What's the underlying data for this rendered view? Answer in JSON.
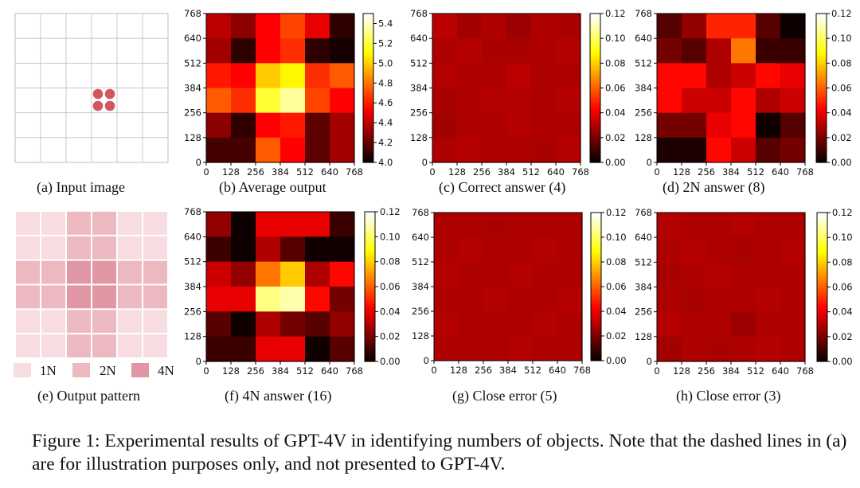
{
  "axis_ticks": [
    "0",
    "128",
    "256",
    "384",
    "512",
    "640",
    "768"
  ],
  "colorbar_ticks_b": [
    "4.0",
    "4.2",
    "4.4",
    "4.6",
    "4.8",
    "5.0",
    "5.2",
    "5.4"
  ],
  "colorbar_ticks_std": [
    "0.00",
    "0.02",
    "0.04",
    "0.06",
    "0.08",
    "0.10",
    "0.12"
  ],
  "legend": {
    "n1": "1N",
    "n2": "2N",
    "n4": "4N"
  },
  "pattern_colors": {
    "n1": "#f7dde1",
    "n2": "#edb9c1",
    "n4": "#e097a3"
  },
  "captions": {
    "a": "(a) Input image",
    "b": "(b) Average output",
    "c": "(c) Correct answer (4)",
    "d": "(d) 2N answer (8)",
    "e": "(e) Output pattern",
    "f": "(f) 4N answer (16)",
    "g": "(g) Close error (5)",
    "h": "(h) Close error (3)"
  },
  "figure_caption": "Figure 1: Experimental results of GPT-4V in identifying numbers of objects. Note that the dashed lines in (a) are for illustration purposes only, and not presented to GPT-4V.",
  "chart_data": [
    {
      "panel": "b",
      "type": "heatmap",
      "title": "Average output",
      "vmin": 4.0,
      "vmax": 5.5,
      "x_ticks": [
        0,
        128,
        256,
        384,
        512,
        640,
        768
      ],
      "y_ticks": [
        0,
        128,
        256,
        384,
        512,
        640,
        768
      ],
      "values": [
        [
          4.4,
          4.3,
          4.55,
          4.7,
          4.5,
          4.1
        ],
        [
          4.35,
          4.1,
          4.55,
          4.65,
          4.1,
          4.05
        ],
        [
          4.6,
          4.55,
          5.0,
          5.1,
          4.65,
          4.75
        ],
        [
          4.75,
          4.65,
          5.2,
          5.35,
          4.7,
          4.55
        ],
        [
          4.3,
          4.1,
          4.55,
          4.6,
          4.2,
          4.35
        ],
        [
          4.15,
          4.15,
          4.75,
          4.55,
          4.2,
          4.35
        ]
      ]
    },
    {
      "panel": "c",
      "type": "heatmap",
      "title": "Correct answer (4)",
      "vmin": 0,
      "vmax": 0.12,
      "x_ticks": [
        0,
        128,
        256,
        384,
        512,
        640,
        768
      ],
      "y_ticks": [
        0,
        128,
        256,
        384,
        512,
        640,
        768
      ],
      "values": [
        [
          0.032,
          0.028,
          0.03,
          0.027,
          0.03,
          0.029
        ],
        [
          0.03,
          0.031,
          0.029,
          0.029,
          0.03,
          0.031
        ],
        [
          0.031,
          0.03,
          0.03,
          0.032,
          0.03,
          0.03
        ],
        [
          0.029,
          0.03,
          0.031,
          0.031,
          0.03,
          0.031
        ],
        [
          0.028,
          0.03,
          0.03,
          0.031,
          0.03,
          0.03
        ],
        [
          0.03,
          0.031,
          0.03,
          0.03,
          0.029,
          0.031
        ]
      ]
    },
    {
      "panel": "d",
      "type": "heatmap",
      "title": "2N answer (8)",
      "vmin": 0,
      "vmax": 0.12,
      "x_ticks": [
        0,
        128,
        256,
        384,
        512,
        640,
        768
      ],
      "y_ticks": [
        0,
        128,
        256,
        384,
        512,
        640,
        768
      ],
      "values": [
        [
          0.015,
          0.025,
          0.05,
          0.05,
          0.015,
          0.002
        ],
        [
          0.02,
          0.015,
          0.03,
          0.065,
          0.01,
          0.01
        ],
        [
          0.045,
          0.045,
          0.03,
          0.035,
          0.045,
          0.04
        ],
        [
          0.045,
          0.035,
          0.035,
          0.045,
          0.03,
          0.035
        ],
        [
          0.02,
          0.02,
          0.04,
          0.045,
          0.003,
          0.015
        ],
        [
          0.005,
          0.005,
          0.045,
          0.035,
          0.015,
          0.02
        ]
      ]
    },
    {
      "panel": "f",
      "type": "heatmap",
      "title": "4N answer (16)",
      "vmin": 0,
      "vmax": 0.12,
      "x_ticks": [
        0,
        128,
        256,
        384,
        512,
        640,
        768
      ],
      "y_ticks": [
        0,
        128,
        256,
        384,
        512,
        640,
        768
      ],
      "values": [
        [
          0.025,
          0.002,
          0.04,
          0.04,
          0.04,
          0.01
        ],
        [
          0.01,
          0.002,
          0.03,
          0.015,
          0.003,
          0.003
        ],
        [
          0.035,
          0.025,
          0.065,
          0.08,
          0.03,
          0.045
        ],
        [
          0.04,
          0.04,
          0.105,
          0.11,
          0.045,
          0.02
        ],
        [
          0.015,
          0.003,
          0.03,
          0.02,
          0.015,
          0.025
        ],
        [
          0.01,
          0.01,
          0.04,
          0.04,
          0.003,
          0.015
        ]
      ]
    },
    {
      "panel": "g",
      "type": "heatmap",
      "title": "Close error (5)",
      "vmin": 0,
      "vmax": 0.12,
      "x_ticks": [
        0,
        128,
        256,
        384,
        512,
        640,
        768
      ],
      "y_ticks": [
        0,
        128,
        256,
        384,
        512,
        640,
        768
      ],
      "values": [
        [
          0.03,
          0.03,
          0.029,
          0.03,
          0.03,
          0.03
        ],
        [
          0.03,
          0.031,
          0.03,
          0.03,
          0.031,
          0.03
        ],
        [
          0.031,
          0.03,
          0.03,
          0.031,
          0.03,
          0.03
        ],
        [
          0.03,
          0.03,
          0.031,
          0.03,
          0.03,
          0.031
        ],
        [
          0.031,
          0.03,
          0.03,
          0.03,
          0.031,
          0.03
        ],
        [
          0.03,
          0.03,
          0.03,
          0.031,
          0.03,
          0.03
        ]
      ]
    },
    {
      "panel": "h",
      "type": "heatmap",
      "title": "Close error (3)",
      "vmin": 0,
      "vmax": 0.12,
      "x_ticks": [
        0,
        128,
        256,
        384,
        512,
        640,
        768
      ],
      "y_ticks": [
        0,
        128,
        256,
        384,
        512,
        640,
        768
      ],
      "values": [
        [
          0.031,
          0.03,
          0.03,
          0.031,
          0.03,
          0.03
        ],
        [
          0.03,
          0.031,
          0.03,
          0.029,
          0.03,
          0.031
        ],
        [
          0.029,
          0.03,
          0.031,
          0.03,
          0.03,
          0.03
        ],
        [
          0.03,
          0.029,
          0.03,
          0.03,
          0.031,
          0.03
        ],
        [
          0.031,
          0.03,
          0.03,
          0.027,
          0.03,
          0.03
        ],
        [
          0.028,
          0.03,
          0.029,
          0.03,
          0.031,
          0.03
        ]
      ]
    }
  ]
}
